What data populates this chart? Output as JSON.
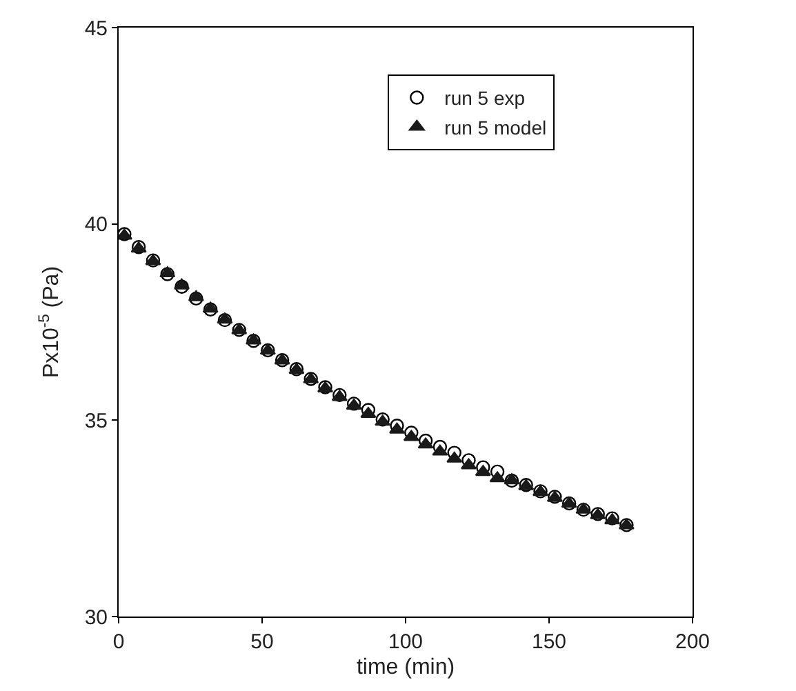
{
  "chart_data": {
    "type": "scatter",
    "xlabel": "time (min)",
    "ylabel": "Px10$^{-5}$ (Pa)",
    "x": [
      2,
      7,
      12,
      17,
      22,
      27,
      32,
      37,
      42,
      47,
      52,
      57,
      62,
      67,
      72,
      77,
      82,
      87,
      92,
      97,
      102,
      107,
      112,
      117,
      122,
      127,
      132,
      137,
      142,
      147,
      152,
      157,
      162,
      167,
      172,
      177
    ],
    "series": [
      {
        "name": "run 5 exp",
        "color": "#000000",
        "marker": "circle",
        "values": [
          39.74,
          39.41,
          39.07,
          38.72,
          38.4,
          38.1,
          37.82,
          37.55,
          37.3,
          37.02,
          36.78,
          36.53,
          36.3,
          36.05,
          35.84,
          35.64,
          35.42,
          35.26,
          35.02,
          34.86,
          34.68,
          34.48,
          34.32,
          34.17,
          33.98,
          33.8,
          33.69,
          33.46,
          33.35,
          33.19,
          33.05,
          32.88,
          32.72,
          32.61,
          32.5,
          32.33
        ]
      },
      {
        "name": "run 5 model",
        "color": "#1a1a1a",
        "marker": "triangle",
        "values": [
          39.7,
          39.37,
          39.05,
          38.74,
          38.43,
          38.13,
          37.84,
          37.56,
          37.29,
          37.03,
          36.77,
          36.52,
          36.28,
          36.04,
          35.81,
          35.59,
          35.37,
          35.16,
          34.96,
          34.76,
          34.57,
          34.38,
          34.2,
          34.02,
          33.85,
          33.68,
          33.52,
          33.47,
          33.32,
          33.17,
          33.02,
          32.87,
          32.72,
          32.58,
          32.45,
          32.32
        ]
      }
    ],
    "xlim": [
      0,
      200
    ],
    "xticks": [
      0,
      50,
      100,
      150,
      200
    ],
    "ylim": [
      30,
      45
    ],
    "yticks": [
      30,
      35,
      40,
      45
    ],
    "grid": false,
    "legend": "top right"
  }
}
